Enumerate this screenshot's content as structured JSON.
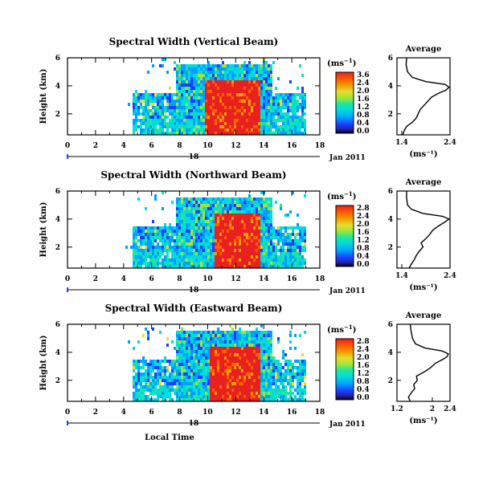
{
  "figure": {
    "xlabel": "Local Time",
    "date_text": "Jan 2011",
    "day_marker": "18",
    "average_title": "Average",
    "colorbar_unit_prefix": "(ms",
    "colorbar_unit_exp": "−1",
    "colorbar_unit_suffix": ")",
    "avg_xunit": "(ms⁻¹)"
  },
  "colormap": [
    "#000000",
    "#2020a0",
    "#1e3cff",
    "#00a0ff",
    "#00dcdc",
    "#1ee6a0",
    "#a0e632",
    "#e6dc32",
    "#f0a000",
    "#ff6000",
    "#f03c32",
    "#e82020"
  ],
  "chart_data": [
    {
      "type": "heatmap",
      "title": "Spectral Width (Vertical Beam)",
      "xlabel": "Local Time",
      "ylabel": "Height (km)",
      "xlim": [
        0,
        18
      ],
      "ylim": [
        0.5,
        6
      ],
      "x_ticks": [
        "0",
        "2",
        "4",
        "6",
        "8",
        "10",
        "12",
        "14",
        "16",
        "18"
      ],
      "y_ticks": [
        "6",
        "4",
        "2"
      ],
      "y_tick_values": [
        6,
        4,
        2
      ],
      "colorbar": {
        "label": "(ms⁻¹)",
        "ticks": [
          "3.6",
          "2.4",
          "2.0",
          "1.6",
          "1.2",
          "0.8",
          "0.4",
          "0.0"
        ]
      },
      "echo_region_hours": [
        4.7,
        16.9
      ],
      "high_width_region_hours": [
        9.8,
        13.7
      ],
      "average_profile": {
        "xlim": [
          1.3,
          2.4
        ],
        "x_ticks": [
          "1.4",
          "2.4"
        ],
        "y_ticks": [
          "6",
          "4",
          "2"
        ],
        "height_km": [
          0.5,
          0.8,
          1.1,
          1.4,
          1.7,
          2.0,
          2.3,
          2.6,
          2.9,
          3.2,
          3.5,
          3.7,
          3.9,
          4.1,
          4.3,
          4.6,
          5.0,
          5.5,
          6.0
        ],
        "width_ms": [
          1.42,
          1.45,
          1.5,
          1.62,
          1.7,
          1.74,
          1.78,
          1.86,
          1.94,
          2.02,
          2.18,
          2.32,
          2.38,
          2.3,
          1.9,
          1.62,
          1.52,
          1.49,
          1.5
        ]
      }
    },
    {
      "type": "heatmap",
      "title": "Spectral Width (Northward Beam)",
      "xlabel": "Local Time",
      "ylabel": "Height (km)",
      "xlim": [
        0,
        18
      ],
      "ylim": [
        0.5,
        6
      ],
      "x_ticks": [
        "0",
        "2",
        "4",
        "6",
        "8",
        "10",
        "12",
        "14",
        "16",
        "18"
      ],
      "y_ticks": [
        "6",
        "4",
        "2"
      ],
      "y_tick_values": [
        6,
        4,
        2
      ],
      "colorbar": {
        "label": "(ms⁻¹)",
        "ticks": [
          "2.8",
          "2.4",
          "2.0",
          "1.6",
          "1.2",
          "0.8",
          "0.4",
          "0.0"
        ]
      },
      "echo_region_hours": [
        4.7,
        16.9
      ],
      "high_width_region_hours": [
        10.4,
        13.6
      ],
      "average_profile": {
        "xlim": [
          1.3,
          2.4
        ],
        "x_ticks": [
          "1.4",
          "2.4"
        ],
        "y_ticks": [
          "6",
          "4",
          "2"
        ],
        "height_km": [
          0.5,
          0.8,
          1.1,
          1.4,
          1.7,
          2.0,
          2.3,
          2.6,
          2.9,
          3.2,
          3.5,
          3.8,
          4.0,
          4.2,
          4.4,
          4.7,
          5.0,
          5.5,
          6.0
        ],
        "width_ms": [
          1.55,
          1.6,
          1.66,
          1.7,
          1.76,
          1.84,
          1.8,
          1.9,
          1.98,
          2.04,
          2.16,
          2.3,
          2.38,
          2.24,
          1.84,
          1.6,
          1.52,
          1.5,
          1.5
        ]
      }
    },
    {
      "type": "heatmap",
      "title": "Spectral Width (Eastward Beam)",
      "xlabel": "Local Time",
      "ylabel": "Height (km)",
      "xlim": [
        0,
        18
      ],
      "ylim": [
        0.5,
        6
      ],
      "x_ticks": [
        "0",
        "2",
        "4",
        "6",
        "8",
        "10",
        "12",
        "14",
        "16",
        "18"
      ],
      "y_ticks": [
        "6",
        "4",
        "2"
      ],
      "y_tick_values": [
        6,
        4,
        2
      ],
      "colorbar": {
        "label": "(ms⁻¹)",
        "ticks": [
          "2.8",
          "2.4",
          "2.0",
          "1.6",
          "1.2",
          "0.8",
          "0.4",
          "0.0"
        ]
      },
      "echo_region_hours": [
        4.7,
        16.9
      ],
      "high_width_region_hours": [
        10.0,
        13.7
      ],
      "average_profile": {
        "xlim": [
          1.2,
          2.4
        ],
        "x_ticks": [
          "1.2",
          "2",
          "2.4"
        ],
        "y_ticks": [
          "6",
          "4",
          "2"
        ],
        "height_km": [
          0.5,
          0.8,
          1.1,
          1.4,
          1.7,
          2.0,
          2.3,
          2.6,
          2.9,
          3.2,
          3.5,
          3.7,
          3.9,
          4.1,
          4.3,
          4.6,
          5.0,
          5.5,
          6.0
        ],
        "width_ms": [
          1.5,
          1.46,
          1.52,
          1.6,
          1.58,
          1.66,
          1.64,
          1.82,
          1.96,
          2.06,
          2.24,
          2.34,
          2.36,
          2.22,
          1.84,
          1.62,
          1.55,
          1.52,
          1.5
        ]
      }
    }
  ]
}
